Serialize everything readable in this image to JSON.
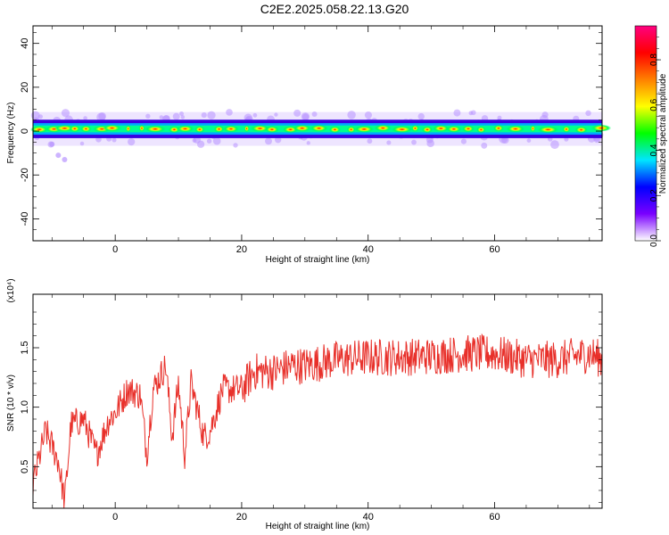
{
  "title": "C2E2.2025.058.22.13.G20",
  "colorbar": {
    "label": "Normalized spectral amplitude",
    "ticks": [
      "0.0",
      "0.2",
      "0.4",
      "0.6",
      "0.8"
    ],
    "tick_values": [
      0.0,
      0.2,
      0.4,
      0.6,
      0.8
    ],
    "range": [
      0,
      0.95
    ],
    "colors": [
      "#ffffff",
      "#7a00ff",
      "#0000ff",
      "#00e5ff",
      "#00ff00",
      "#ffff00",
      "#ff8000",
      "#ff0000",
      "#ff0080"
    ]
  },
  "chart_data": [
    {
      "type": "heatmap",
      "xlabel": "Height of straight line (km)",
      "ylabel": "Frequency (Hz)",
      "xlim": [
        -13,
        77
      ],
      "ylim": [
        -50,
        48
      ],
      "x_ticks": [
        0,
        20,
        40,
        60
      ],
      "y_ticks": [
        40,
        20,
        0,
        -20,
        -40
      ],
      "y_tick_labels": [
        "40",
        "20",
        "0",
        "-20",
        "-40"
      ],
      "band_center_hz": 1,
      "band_halfwidth_hz": 3.5,
      "outlier_points": [
        {
          "x": -10,
          "y": -6
        },
        {
          "x": -9,
          "y": -11
        },
        {
          "x": -8,
          "y": -13
        }
      ]
    },
    {
      "type": "line",
      "xlabel": "Height of straight line (km)",
      "ylabel": "SNR (10 * v/v)",
      "scale_note": "(x10⁴)",
      "xlim": [
        -13,
        77
      ],
      "ylim": [
        0.15,
        1.95
      ],
      "x_ticks": [
        0,
        20,
        40,
        60
      ],
      "y_ticks": [
        0.5,
        1.0,
        1.5
      ],
      "y_tick_labels": [
        "0.5",
        "1.0",
        "1.5"
      ],
      "series": [
        {
          "color": "#e8302a",
          "x": [
            -13,
            -11,
            -9,
            -8,
            -7,
            -5,
            -3,
            -1,
            0,
            2,
            4,
            5,
            6,
            8,
            9,
            10,
            11,
            12,
            14,
            15,
            17,
            20,
            22,
            25,
            28,
            30,
            35,
            40,
            45,
            50,
            55,
            60,
            65,
            70,
            75,
            77
          ],
          "values": [
            0.35,
            0.8,
            0.55,
            0.2,
            0.85,
            0.9,
            0.6,
            0.9,
            0.95,
            1.15,
            1.1,
            0.6,
            1.15,
            1.35,
            0.75,
            1.2,
            0.6,
            1.2,
            0.75,
            0.8,
            1.15,
            1.15,
            1.3,
            1.3,
            1.35,
            1.35,
            1.4,
            1.42,
            1.42,
            1.43,
            1.45,
            1.45,
            1.4,
            1.4,
            1.45,
            1.4
          ]
        }
      ]
    }
  ]
}
